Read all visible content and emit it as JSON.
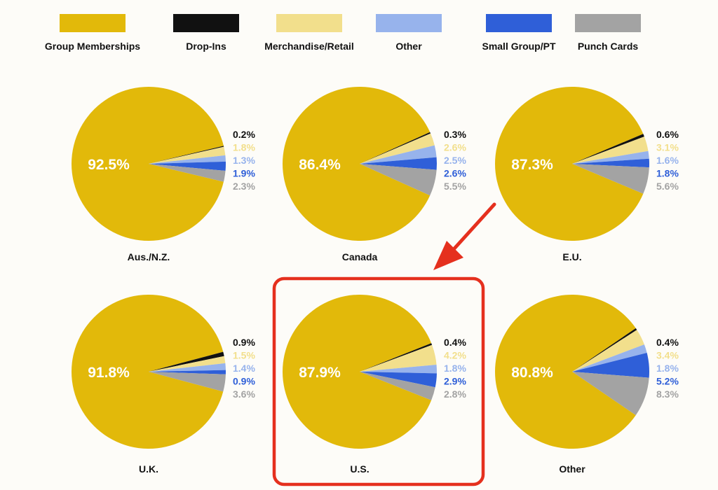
{
  "colors": {
    "Group Memberships": "#e2b90a",
    "Drop-Ins": "#111111",
    "Merchandise/Retail": "#f2df8c",
    "Other": "#97b3ec",
    "Small Group/PT": "#2f5fd8",
    "Punch Cards": "#a3a3a3",
    "highlight": "#e5301e"
  },
  "chart_data": {
    "type": "pie",
    "legend": [
      "Group Memberships",
      "Drop-Ins",
      "Merchandise/Retail",
      "Other",
      "Small Group/PT",
      "Punch Cards"
    ],
    "legend_position": "top",
    "charts": [
      {
        "region": "Aus./N.Z.",
        "values": {
          "Group Memberships": 92.5,
          "Drop-Ins": 0.2,
          "Merchandise/Retail": 1.8,
          "Other": 1.3,
          "Small Group/PT": 1.9,
          "Punch Cards": 2.3
        },
        "labels": {
          "Group Memberships": "92.5%",
          "Drop-Ins": "0.2%",
          "Merchandise/Retail": "1.8%",
          "Other": "1.3%",
          "Small Group/PT": "1.9%",
          "Punch Cards": "2.3%"
        }
      },
      {
        "region": "Canada",
        "values": {
          "Group Memberships": 86.4,
          "Drop-Ins": 0.3,
          "Merchandise/Retail": 2.6,
          "Other": 2.5,
          "Small Group/PT": 2.6,
          "Punch Cards": 5.5
        },
        "labels": {
          "Group Memberships": "86.4%",
          "Drop-Ins": "0.3%",
          "Merchandise/Retail": "2.6%",
          "Other": "2.5%",
          "Small Group/PT": "2.6%",
          "Punch Cards": "5.5%"
        }
      },
      {
        "region": "E.U.",
        "values": {
          "Group Memberships": 87.3,
          "Drop-Ins": 0.6,
          "Merchandise/Retail": 3.1,
          "Other": 1.6,
          "Small Group/PT": 1.8,
          "Punch Cards": 5.6
        },
        "labels": {
          "Group Memberships": "87.3%",
          "Drop-Ins": "0.6%",
          "Merchandise/Retail": "3.1%",
          "Other": "1.6%",
          "Small Group/PT": "1.8%",
          "Punch Cards": "5.6%"
        }
      },
      {
        "region": "U.K.",
        "values": {
          "Group Memberships": 91.8,
          "Drop-Ins": 0.9,
          "Merchandise/Retail": 1.5,
          "Other": 1.4,
          "Small Group/PT": 0.9,
          "Punch Cards": 3.6
        },
        "labels": {
          "Group Memberships": "91.8%",
          "Drop-Ins": "0.9%",
          "Merchandise/Retail": "1.5%",
          "Other": "1.4%",
          "Small Group/PT": "0.9%",
          "Punch Cards": "3.6%"
        }
      },
      {
        "region": "U.S.",
        "highlighted": true,
        "values": {
          "Group Memberships": 87.9,
          "Drop-Ins": 0.4,
          "Merchandise/Retail": 4.2,
          "Other": 1.8,
          "Small Group/PT": 2.9,
          "Punch Cards": 2.8
        },
        "labels": {
          "Group Memberships": "87.9%",
          "Drop-Ins": "0.4%",
          "Merchandise/Retail": "4.2%",
          "Other": "1.8%",
          "Small Group/PT": "2.9%",
          "Punch Cards": "2.8%"
        }
      },
      {
        "region": "Other",
        "values": {
          "Group Memberships": 80.8,
          "Drop-Ins": 0.4,
          "Merchandise/Retail": 3.4,
          "Other": 1.8,
          "Small Group/PT": 5.2,
          "Punch Cards": 8.3
        },
        "labels": {
          "Group Memberships": "80.8%",
          "Drop-Ins": "0.4%",
          "Merchandise/Retail": "3.4%",
          "Other": "1.8%",
          "Small Group/PT": "5.2%",
          "Punch Cards": "8.3%"
        }
      }
    ]
  }
}
